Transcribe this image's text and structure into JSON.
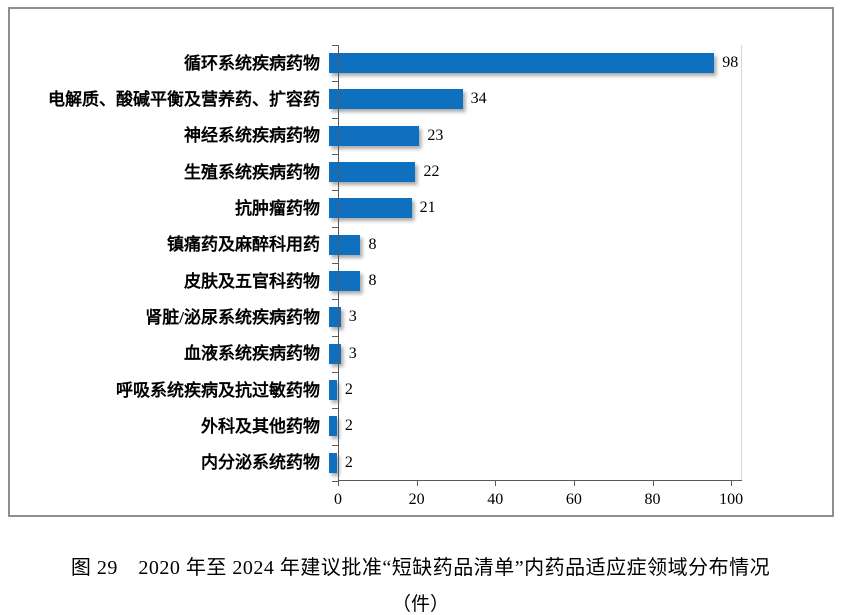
{
  "figure": {
    "caption_line1": "图 29　2020 年至 2024 年建议批准“短缺药品清单”内药品适应症领域分布情况",
    "caption_line2": "（件）"
  },
  "chart_data": {
    "type": "bar",
    "orientation": "horizontal",
    "title": "图 29　2020 年至 2024 年建议批准“短缺药品清单”内药品适应症领域分布情况",
    "unit": "件",
    "categories": [
      "循环系统疾病药物",
      "电解质、酸碱平衡及营养药、扩容药",
      "神经系统疾病药物",
      "生殖系统疾病药物",
      "抗肿瘤药物",
      "镇痛药及麻醉科用药",
      "皮肤及五官科药物",
      "肾脏/泌尿系统疾病药物",
      "血液系统疾病药物",
      "呼吸系统疾病及抗过敏药物",
      "外科及其他药物",
      "内分泌系统药物"
    ],
    "values": [
      98,
      34,
      23,
      22,
      21,
      8,
      8,
      3,
      3,
      2,
      2,
      2
    ],
    "x_ticks": [
      0,
      20,
      40,
      60,
      80,
      100
    ],
    "xlim": [
      0,
      102.5
    ],
    "value_labels_shown": true,
    "grid": false,
    "legend": "none",
    "bar_color": "#1070c0",
    "axis_color": "#595959",
    "frame_color": "#8f8f8f",
    "plot_border_color": "#d6d6d6"
  }
}
